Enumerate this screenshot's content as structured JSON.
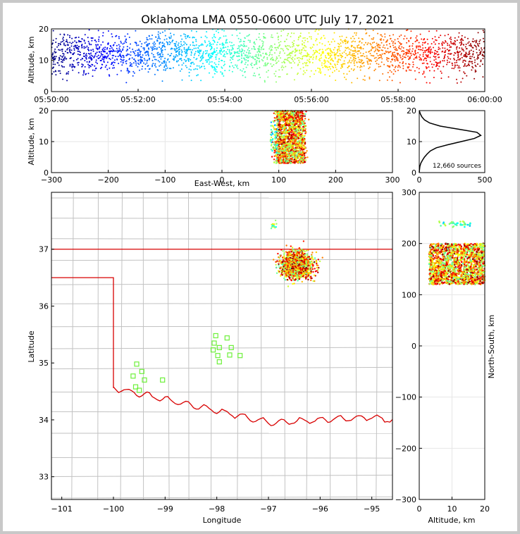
{
  "chart_data": [
    {
      "id": "time-height",
      "type": "scatter",
      "title": "Oklahoma LMA 0550-0600 UTC July 17, 2021",
      "xlabel": "",
      "ylabel": "Altitude, km",
      "xticks": [
        "05:50:00",
        "05:52:00",
        "05:54:00",
        "05:56:00",
        "05:58:00",
        "06:00:00"
      ],
      "xlim_minutes": [
        0,
        10
      ],
      "ylim": [
        0,
        20
      ],
      "yticks": [
        0,
        10,
        20
      ],
      "colormap": "jet (time)",
      "altitude_mean_km": 12,
      "altitude_spread_km": 3.5
    },
    {
      "id": "east-west-altitude",
      "type": "scatter",
      "xlabel": "East-West, km",
      "ylabel": "Altitude, km",
      "xlim": [
        -300,
        300
      ],
      "xticks": [
        -300,
        -200,
        -100,
        0,
        100,
        200,
        300
      ],
      "ylim": [
        0,
        20
      ],
      "yticks": [
        0,
        10,
        20
      ],
      "cluster_x_range": [
        95,
        145
      ],
      "cluster_z_range": [
        3,
        20
      ]
    },
    {
      "id": "altitude-histogram",
      "type": "line",
      "xlim": [
        0,
        500
      ],
      "xticks": [
        0,
        500
      ],
      "ylim": [
        0,
        20
      ],
      "yticks": [
        0,
        10,
        20
      ],
      "annotation": "12,660 sources",
      "profile": [
        [
          0,
          0
        ],
        [
          2,
          1
        ],
        [
          5,
          2
        ],
        [
          12,
          3
        ],
        [
          25,
          4
        ],
        [
          40,
          5
        ],
        [
          60,
          6
        ],
        [
          85,
          7
        ],
        [
          130,
          8
        ],
        [
          220,
          9
        ],
        [
          320,
          10
        ],
        [
          420,
          11
        ],
        [
          470,
          12
        ],
        [
          440,
          13
        ],
        [
          300,
          14
        ],
        [
          160,
          15
        ],
        [
          80,
          16
        ],
        [
          40,
          17
        ],
        [
          20,
          18
        ],
        [
          8,
          19
        ],
        [
          0,
          20
        ]
      ]
    },
    {
      "id": "plan-view",
      "type": "scatter",
      "xlabel": "Longitude",
      "ylabel": "Latitude",
      "xlim": [
        -101.2,
        -94.6
      ],
      "xticks": [
        -101,
        -100,
        -99,
        -98,
        -97,
        -96,
        -95
      ],
      "ylim": [
        32.6,
        38.0
      ],
      "yticks": [
        33,
        34,
        35,
        36,
        37
      ],
      "cluster_center": [
        -96.45,
        36.72
      ],
      "stations": [
        [
          -99.55,
          34.98
        ],
        [
          -99.45,
          34.85
        ],
        [
          -99.62,
          34.77
        ],
        [
          -99.4,
          34.7
        ],
        [
          -99.57,
          34.58
        ],
        [
          -99.5,
          34.52
        ],
        [
          -99.05,
          34.7
        ],
        [
          -98.02,
          35.48
        ],
        [
          -98.05,
          35.35
        ],
        [
          -98.07,
          35.23
        ],
        [
          -97.95,
          35.27
        ],
        [
          -97.8,
          35.44
        ],
        [
          -97.72,
          35.27
        ],
        [
          -97.98,
          35.13
        ],
        [
          -97.95,
          35.02
        ],
        [
          -97.75,
          35.14
        ],
        [
          -97.55,
          35.13
        ]
      ]
    },
    {
      "id": "altitude-north-south",
      "type": "scatter",
      "xlabel": "Altitude, km",
      "ylabel": "North-South, km",
      "xlim": [
        0,
        20
      ],
      "xticks": [
        0,
        10,
        20
      ],
      "ylim": [
        -300,
        300
      ],
      "yticks": [
        -300,
        -200,
        -100,
        0,
        100,
        200,
        300
      ],
      "cluster_y_range": [
        120,
        200
      ]
    }
  ]
}
